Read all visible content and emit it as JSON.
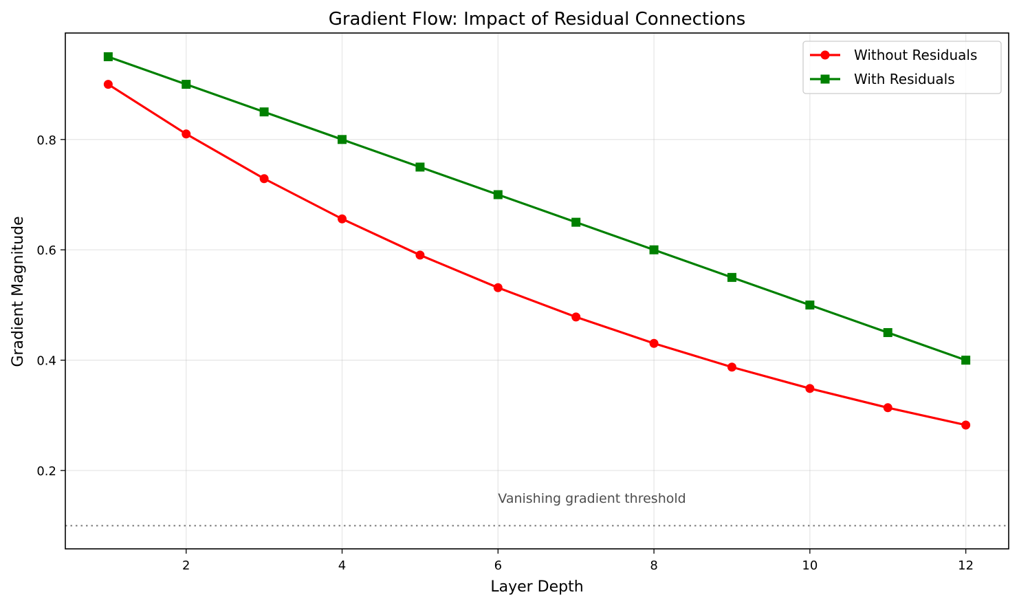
{
  "chart_data": {
    "type": "line",
    "title": "Gradient Flow: Impact of Residual Connections",
    "xlabel": "Layer Depth",
    "ylabel": "Gradient Magnitude",
    "x": [
      1,
      2,
      3,
      4,
      5,
      6,
      7,
      8,
      9,
      10,
      11,
      12
    ],
    "xlim": [
      0.45,
      12.55
    ],
    "ylim": [
      0.058,
      0.993
    ],
    "xticks": [
      2,
      4,
      6,
      8,
      10,
      12
    ],
    "xtick_labels": [
      "2",
      "4",
      "6",
      "8",
      "10",
      "12"
    ],
    "yticks": [
      0.2,
      0.4,
      0.6,
      0.8
    ],
    "ytick_labels": [
      "0.2",
      "0.4",
      "0.6",
      "0.8"
    ],
    "grid": true,
    "legend_position": "top-right",
    "series": [
      {
        "name": "Without Residuals",
        "color": "#ff0000",
        "marker": "circle",
        "values": [
          0.9,
          0.81,
          0.729,
          0.6561,
          0.59049,
          0.531441,
          0.478297,
          0.430467,
          0.38742,
          0.348678,
          0.313811,
          0.28243
        ]
      },
      {
        "name": "With Residuals",
        "color": "#008000",
        "marker": "square",
        "values": [
          0.95,
          0.9,
          0.85,
          0.8,
          0.75,
          0.7,
          0.65,
          0.6,
          0.55,
          0.5,
          0.45,
          0.4
        ]
      }
    ],
    "threshold": {
      "y": 0.1,
      "color": "#808080",
      "style": "dotted"
    },
    "annotations": [
      {
        "text": "Vanishing gradient threshold",
        "x": 6,
        "y": 0.15,
        "color": "#4d4d4d"
      }
    ]
  }
}
